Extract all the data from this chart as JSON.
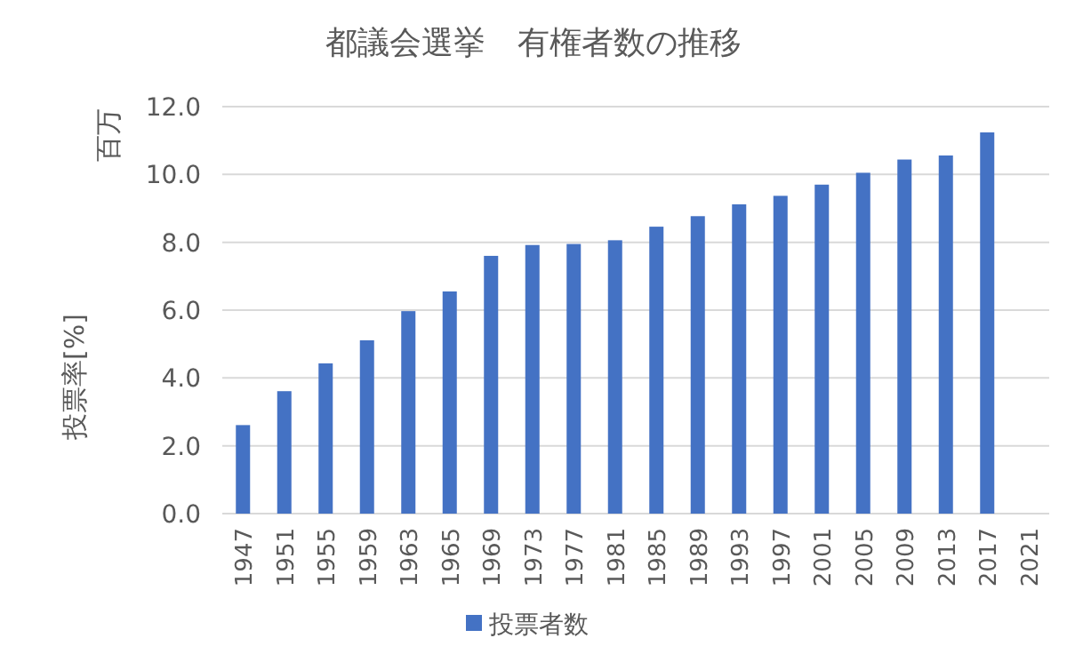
{
  "chart_data": {
    "type": "bar",
    "title": "都議会選挙　有権者数の推移",
    "ylabel": "投票率[%]",
    "annotations": [
      "百万"
    ],
    "categories": [
      "1947",
      "1951",
      "1955",
      "1959",
      "1963",
      "1965",
      "1969",
      "1973",
      "1977",
      "1981",
      "1985",
      "1989",
      "1993",
      "1997",
      "2001",
      "2005",
      "2009",
      "2013",
      "2017",
      "2021"
    ],
    "series": [
      {
        "name": "投票者数",
        "color": "#4472c4",
        "values": [
          2.61,
          3.61,
          4.43,
          5.11,
          5.97,
          6.55,
          7.6,
          7.92,
          7.95,
          8.06,
          8.46,
          8.77,
          9.12,
          9.37,
          9.7,
          10.05,
          10.44,
          10.56,
          11.24,
          null
        ]
      }
    ],
    "ylim": [
      0,
      12
    ],
    "yticks": [
      {
        "value": 0,
        "label": "0.0"
      },
      {
        "value": 2,
        "label": "2.0"
      },
      {
        "value": 4,
        "label": "4.0"
      },
      {
        "value": 6,
        "label": "6.0"
      },
      {
        "value": 8,
        "label": "8.0"
      },
      {
        "value": 10,
        "label": "10.0"
      },
      {
        "value": 12,
        "label": "12.0"
      }
    ],
    "grid": "y",
    "legend": "bottom"
  }
}
